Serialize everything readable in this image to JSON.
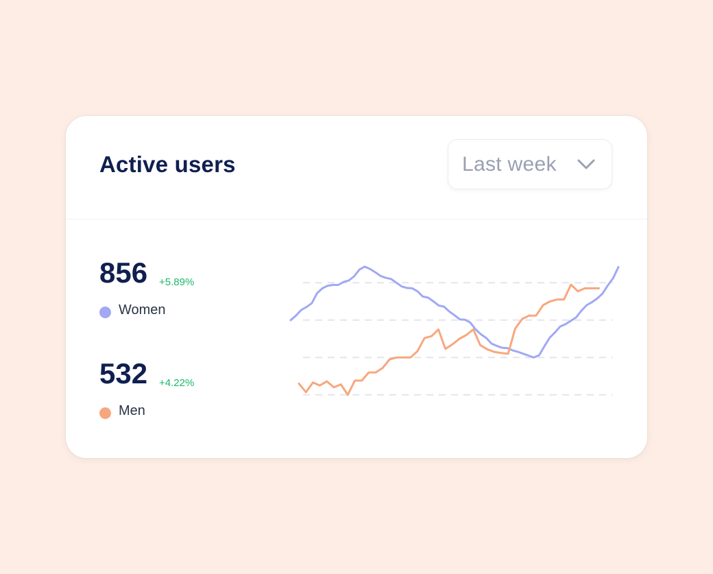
{
  "card": {
    "title": "Active users",
    "period_select": {
      "selected": "Last week",
      "icon": "chevron-down-icon"
    }
  },
  "stats": {
    "women": {
      "value": "856",
      "change": "+5.89%",
      "label": "Women"
    },
    "men": {
      "value": "532",
      "change": "+4.22%",
      "label": "Men"
    }
  },
  "colors": {
    "background": "#fdede4",
    "title": "#0f1f4f",
    "positive": "#19b96a",
    "women": "#a1a8f4",
    "men": "#f7a77e",
    "grid": "#e3e5ee"
  },
  "chart_data": {
    "type": "line",
    "grid": true,
    "legend": "left",
    "xlim": [
      0,
      67
    ],
    "ylim": [
      0,
      4
    ],
    "gridlines_y": [
      0.5,
      1.5,
      2.5,
      3.5
    ],
    "series": [
      {
        "name": "Women",
        "color": "#a1a8f4",
        "values": [
          2.5,
          2.62,
          2.77,
          2.85,
          2.95,
          3.22,
          3.35,
          3.42,
          3.44,
          3.44,
          3.52,
          3.56,
          3.67,
          3.85,
          3.93,
          3.87,
          3.78,
          3.68,
          3.63,
          3.6,
          3.5,
          3.4,
          3.36,
          3.35,
          3.27,
          3.13,
          3.1,
          3.0,
          2.89,
          2.86,
          2.73,
          2.63,
          2.52,
          2.51,
          2.43,
          2.25,
          2.12,
          2.02,
          1.87,
          1.81,
          1.76,
          1.75,
          1.69,
          1.65,
          1.6,
          1.55,
          1.5,
          1.56,
          1.8,
          2.03,
          2.17,
          2.33,
          2.39,
          2.48,
          2.57,
          2.75,
          2.9,
          2.98,
          3.08,
          3.21,
          3.43,
          3.62,
          3.92
        ]
      },
      {
        "name": "Men",
        "color": "#f7a77e",
        "values": [
          0.8,
          0.57,
          0.83,
          0.75,
          0.86,
          0.7,
          0.78,
          0.5,
          0.88,
          0.88,
          1.1,
          1.1,
          1.22,
          1.45,
          1.5,
          1.5,
          1.5,
          1.67,
          2.02,
          2.07,
          2.25,
          1.73,
          1.85,
          2.0,
          2.1,
          2.25,
          1.83,
          1.72,
          1.65,
          1.62,
          1.6,
          2.27,
          2.53,
          2.62,
          2.62,
          2.9,
          3.0,
          3.05,
          3.05,
          3.45,
          3.27,
          3.35,
          3.35,
          3.35
        ]
      }
    ]
  }
}
